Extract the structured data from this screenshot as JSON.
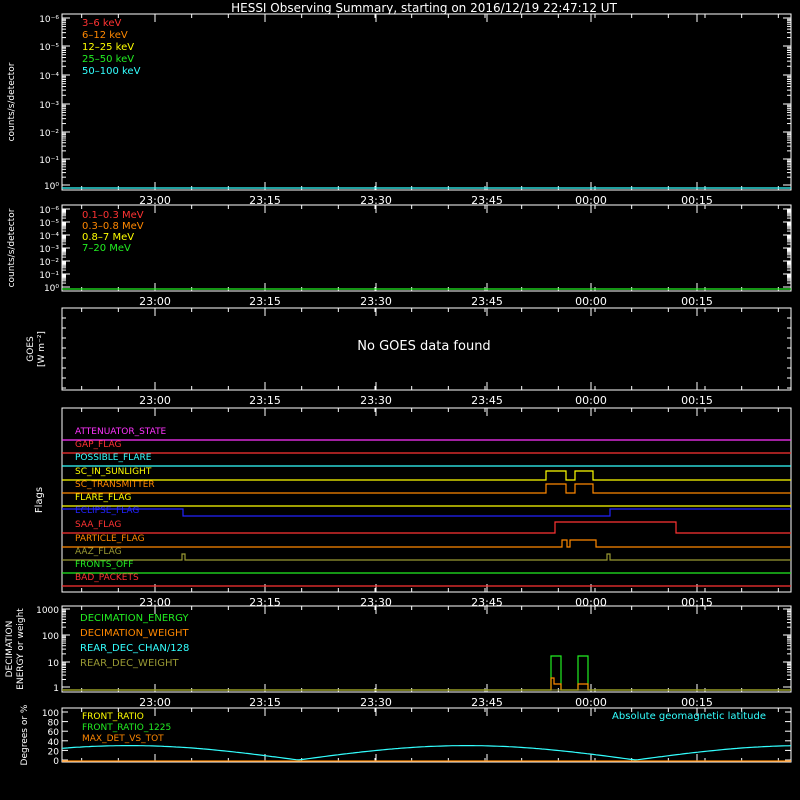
{
  "title": "HESSI Observing Summary, starting on 2016/12/19 22:47:12 UT",
  "time_ticks": [
    "23:00",
    "23:15",
    "23:30",
    "23:45",
    "00:00",
    "00:15"
  ],
  "colors": {
    "bg": "#000000",
    "axes": "#ffffff",
    "red": "#ff3333",
    "orange": "#ff8800",
    "yellow": "#ffff00",
    "green": "#22ee22",
    "cyan": "#33ffff",
    "blue": "#2222ff",
    "magenta": "#ff33ff",
    "olive": "#999933"
  },
  "chart_data": [
    {
      "id": "lightcurve-low",
      "type": "line",
      "ylabel": "counts/s/detector",
      "y_scale": "log",
      "y_ticks": [
        "10⁰",
        "10⁻¹",
        "10⁻²",
        "10⁻³",
        "10⁻⁴",
        "10⁻⁵",
        "10⁻⁶"
      ],
      "legend": [
        {
          "name": "3–6 keV",
          "color": "#ff3333"
        },
        {
          "name": "6–12 keV",
          "color": "#ff8800"
        },
        {
          "name": "12–25 keV",
          "color": "#ffff00"
        },
        {
          "name": "25–50 keV",
          "color": "#22ee22"
        },
        {
          "name": "50–100 keV",
          "color": "#33ffff"
        }
      ]
    },
    {
      "id": "lightcurve-high",
      "type": "line",
      "ylabel": "counts/s/detector",
      "y_scale": "log",
      "y_ticks": [
        "10⁰",
        "10⁻¹",
        "10⁻²",
        "10⁻³",
        "10⁻⁴",
        "10⁻⁵",
        "10⁻⁶"
      ],
      "legend": [
        {
          "name": "0.1–0.3 MeV",
          "color": "#ff3333"
        },
        {
          "name": "0.3–0.8 MeV",
          "color": "#ff8800"
        },
        {
          "name": "0.8–7 MeV",
          "color": "#ffff00"
        },
        {
          "name": "7–20 MeV",
          "color": "#22ee22"
        }
      ]
    },
    {
      "id": "goes",
      "type": "line",
      "ylabel": "GOES",
      "ylabel2": "[W m⁻²]",
      "message": "No GOES data found"
    },
    {
      "id": "flags",
      "type": "line",
      "ylabel": "Flags",
      "flags": [
        {
          "name": "ATTENUATOR_STATE",
          "color": "#ff33ff"
        },
        {
          "name": "GAP_FLAG",
          "color": "#ff3333"
        },
        {
          "name": "POSSIBLE_FLARE",
          "color": "#33ffff"
        },
        {
          "name": "SC_IN_SUNLIGHT",
          "color": "#ffff00"
        },
        {
          "name": "SC_TRANSMITTER",
          "color": "#ff8800"
        },
        {
          "name": "FLARE_FLAG",
          "color": "#ffff00"
        },
        {
          "name": "ECLIPSE_FLAG",
          "color": "#2222ff"
        },
        {
          "name": "SAA_FLAG",
          "color": "#ff3333"
        },
        {
          "name": "PARTICLE_FLAG",
          "color": "#ff8800"
        },
        {
          "name": "AAZ_FLAG",
          "color": "#999933"
        },
        {
          "name": "FRONTS_OFF",
          "color": "#22ee22"
        },
        {
          "name": "BAD_PACKETS",
          "color": "#ff3333"
        }
      ]
    },
    {
      "id": "decimation",
      "type": "line",
      "ylabel": "DECIMATION",
      "ylabel2": "ENERGY or weight",
      "y_scale": "log",
      "y_ticks": [
        "1",
        "10",
        "100",
        "1000"
      ],
      "legend": [
        {
          "name": "DECIMATION_ENERGY",
          "color": "#22ee22"
        },
        {
          "name": "DECIMATION_WEIGHT",
          "color": "#ff8800"
        },
        {
          "name": "REAR_DEC_CHAN/128",
          "color": "#33ffff"
        },
        {
          "name": "REAR_DEC_WEIGHT",
          "color": "#999933"
        }
      ]
    },
    {
      "id": "ratios",
      "type": "line",
      "ylabel": "Degrees or %",
      "y_ticks": [
        "0",
        "20",
        "40",
        "60",
        "80",
        "100"
      ],
      "ylim": [
        0,
        100
      ],
      "legend": [
        {
          "name": "FRONT_RATIO",
          "color": "#ffff00"
        },
        {
          "name": "FRONT_RATIO_1225",
          "color": "#22ee22"
        },
        {
          "name": "MAX_DET_VS_TOT",
          "color": "#ff8800"
        }
      ],
      "legend_right": {
        "name": "Absolute geomagnetic latitude",
        "color": "#33ffff"
      }
    }
  ]
}
